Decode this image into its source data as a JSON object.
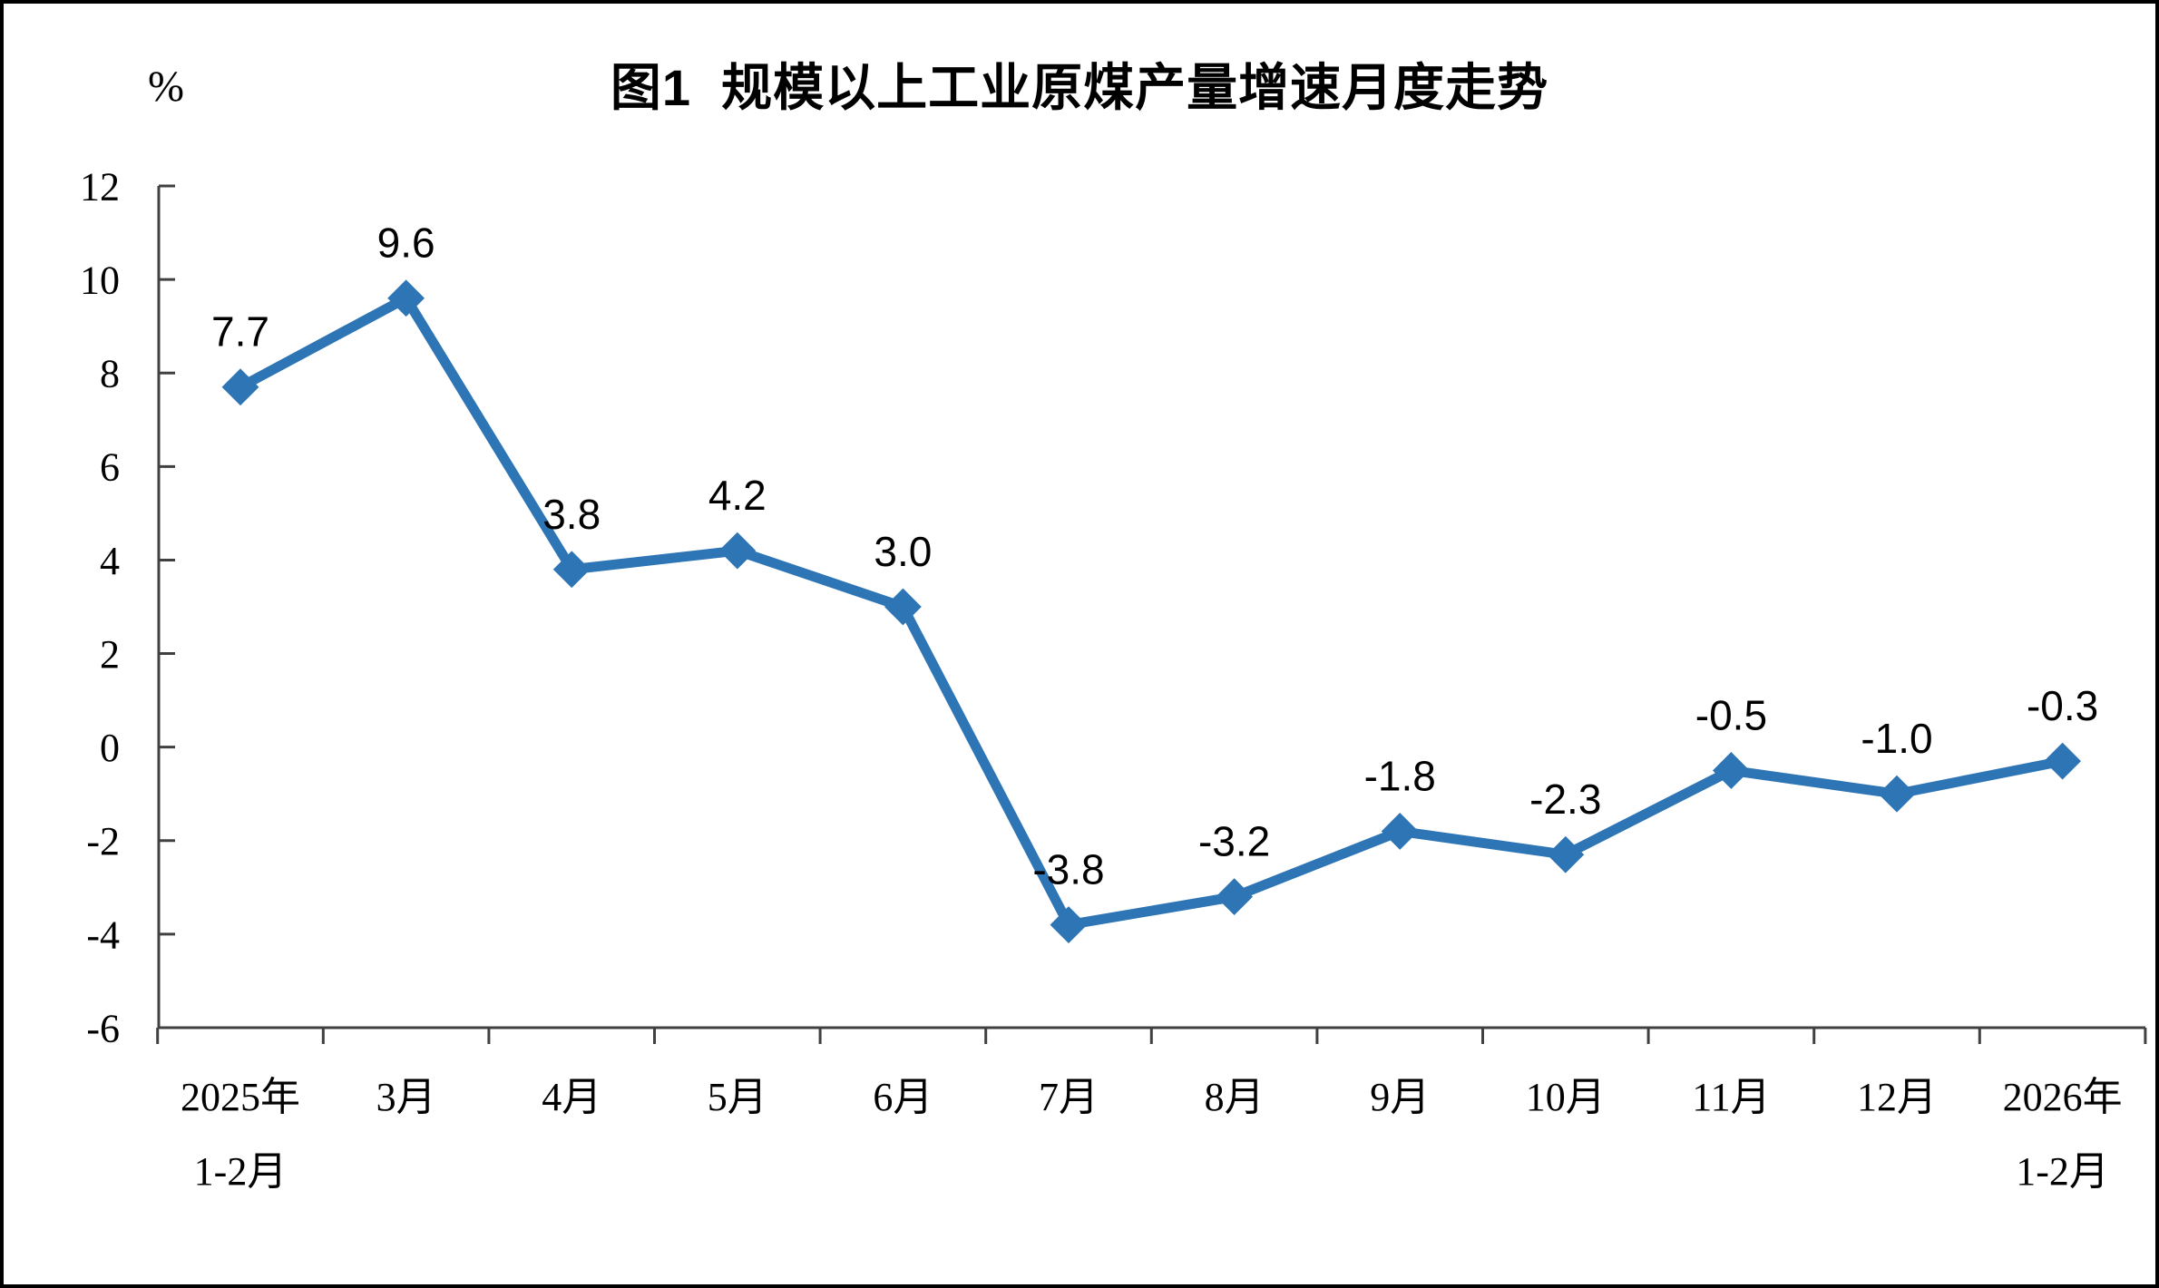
{
  "chart_data": {
    "type": "line",
    "title": "图1  规模以上工业原煤产量增速月度走势",
    "ylabel": "%",
    "categories": [
      "2025年\n1-2月",
      "3月",
      "4月",
      "5月",
      "6月",
      "7月",
      "8月",
      "9月",
      "10月",
      "11月",
      "12月",
      "2026年\n1-2月"
    ],
    "series": [
      {
        "name": "规模以上工业原煤产量增速",
        "values": [
          7.7,
          9.6,
          3.8,
          4.2,
          3.0,
          -3.8,
          -3.2,
          -1.8,
          -2.3,
          -0.5,
          -1.0,
          -0.3
        ],
        "data_labels": [
          "7.7",
          "9.6",
          "3.8",
          "4.2",
          "3.0",
          "-3.8",
          "-3.2",
          "-1.8",
          "-2.3",
          "-0.5",
          "-1.0",
          "-0.3"
        ]
      }
    ],
    "yticks": [
      12,
      10,
      8,
      6,
      4,
      2,
      0,
      -2,
      -4,
      -6
    ],
    "ylim": [
      -6,
      12
    ],
    "grid": false,
    "legend_position": "none",
    "line_color": "#2E75B6",
    "marker": "diamond",
    "axis_color": "#404040",
    "label_color": "#000000"
  }
}
